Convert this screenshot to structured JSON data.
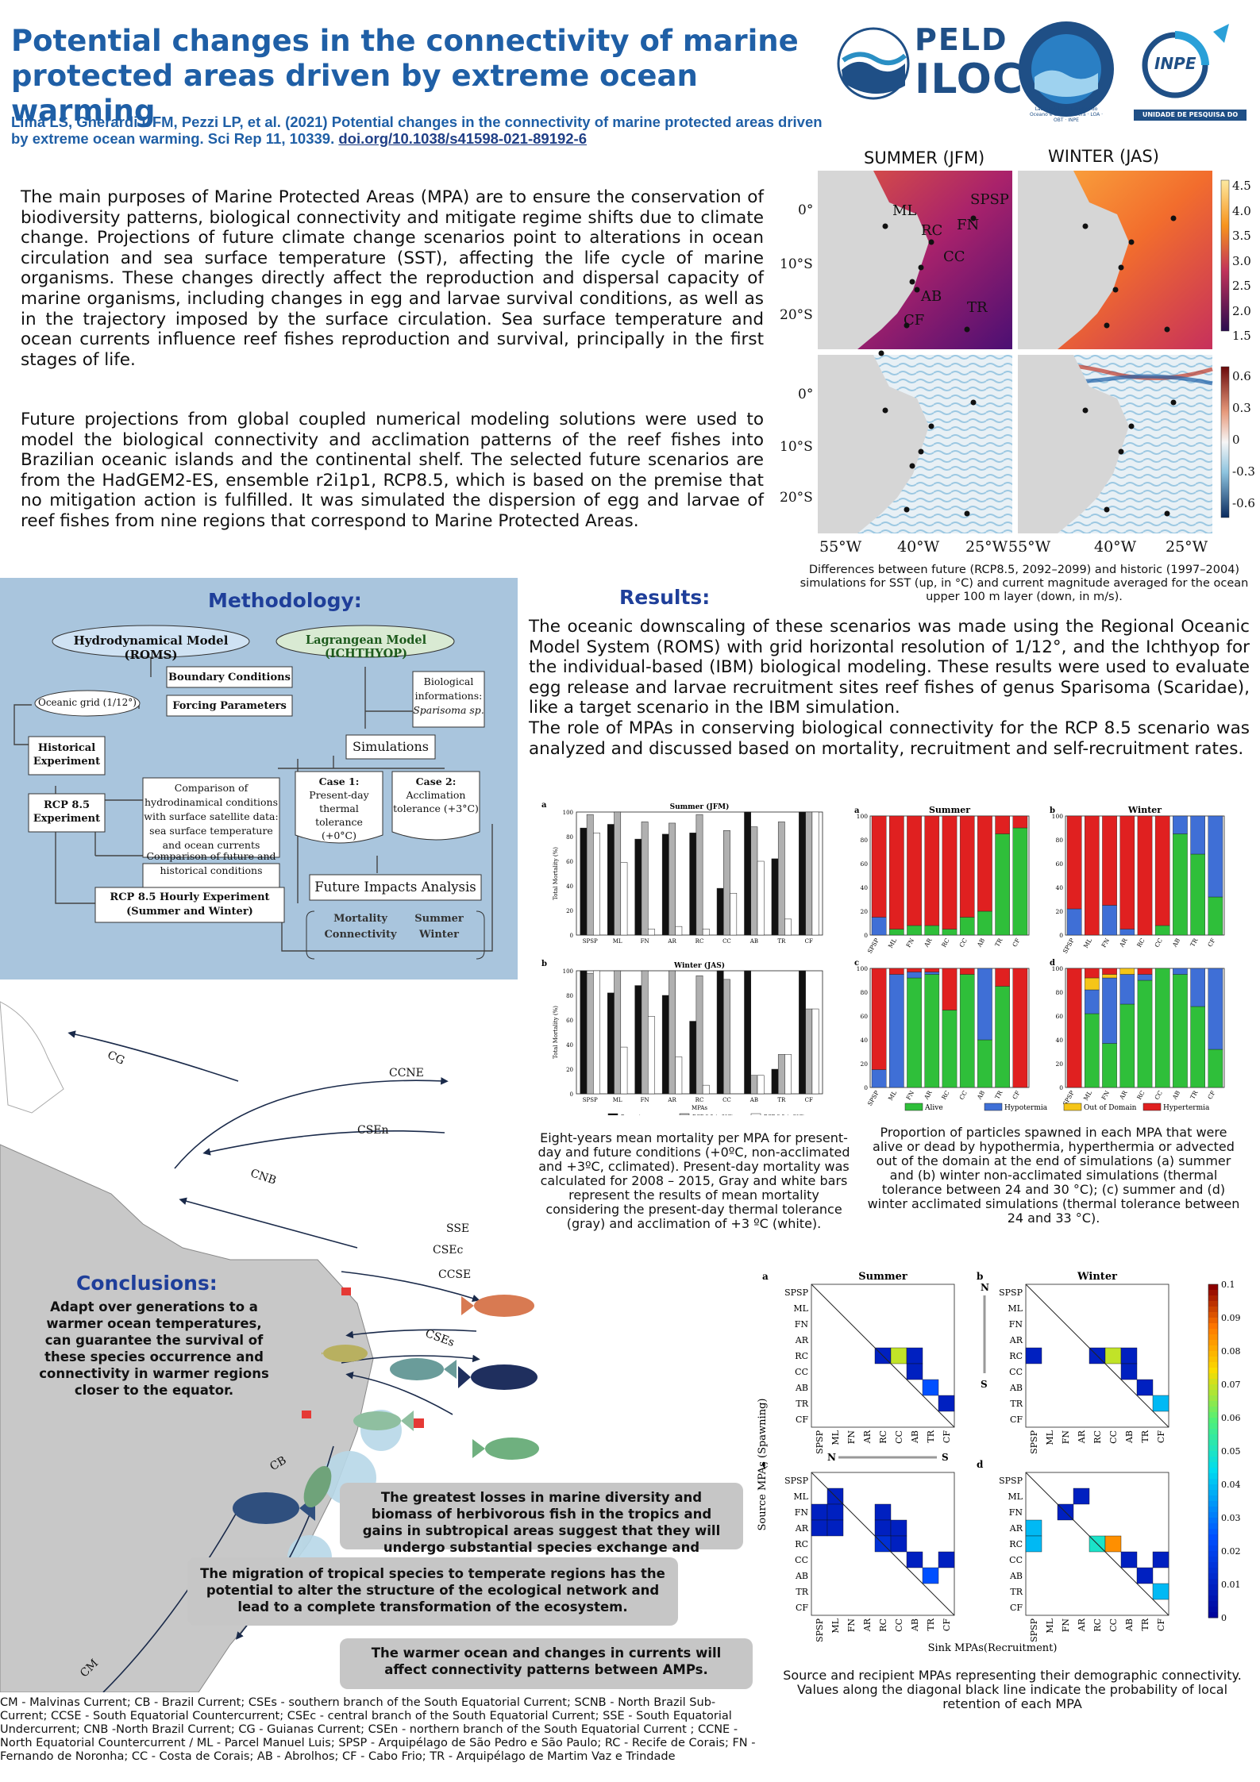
{
  "title": "Potential changes in the connectivity of marine protected areas driven by extreme ocean warming",
  "citation": {
    "text": "Lima LS, Gherardi DFM, Pezzi LP, et al. (2021) Potential changes in the connectivity of marine protected areas driven by extreme ocean warming. Sci Rep 11, 10339.",
    "doi": "doi.org/10.1038/s41598-021-89192-6"
  },
  "logos": {
    "peld_top": "PELD",
    "peld_bottom": "ILOC",
    "seal_text": "Laboratório de Estudos do Oceano e da Atmosfera · LOA · OBT · INPE",
    "inpe_name": "INPE",
    "inpe_caption": "UNIDADE DE PESQUISA DO MCTI"
  },
  "intro": {
    "p1": "The main purposes of Marine Protected Areas (MPA) are to ensure the conservation of biodiversity patterns, biological connectivity and mitigate regime shifts due to climate change. Projections of future climate change scenarios point to alterations in ocean circulation and sea surface temperature (SST), affecting the life cycle of marine organisms. These changes directly affect the reproduction and dispersal capacity of marine organisms, including changes in egg and larvae survival conditions, as well as in the trajectory imposed by the surface circulation. Sea surface temperature and ocean currents influence reef fishes reproduction and survival, principally in the first stages of life.",
    "p2": "Future projections from global coupled numerical modeling solutions were used to model the biological connectivity and acclimation patterns of the reef fishes into Brazilian oceanic islands and the continental shelf. The selected future scenarios are from the HadGEM2-ES, ensemble r2i1p1, RCP8.5, which is based on the premise that no mitigation action is fulfilled. It was simulated the dispersion of egg and larvae of reef fishes from nine regions that correspond to Marine Protected Areas."
  },
  "map_figure": {
    "col_summer": "SUMMER (JFM)",
    "col_winter": "WINTER (JAS)",
    "lat_labels": [
      "0°",
      "10°S",
      "20°S"
    ],
    "lon_labels": [
      "55°W",
      "40°W",
      "25°W",
      "55°W",
      "40°W",
      "25°W"
    ],
    "site_labels": [
      "ML",
      "SPSP",
      "RC",
      "FN",
      "CC",
      "AB",
      "TR",
      "CF"
    ],
    "sst_ticks": [
      "4.5",
      "4.0",
      "3.5",
      "3.0",
      "2.5",
      "2.0",
      "1.5"
    ],
    "cur_ticks": [
      "0.6",
      "0.3",
      "0",
      "-0.3",
      "-0.6"
    ],
    "caption": "Differences between future (RCP8.5, 2092–2099) and historic (1997–2004) simulations for SST (up, in °C) and current magnitude averaged for the ocean upper 100 m layer (down, in m/s)."
  },
  "methodology": {
    "heading": "Methodology:",
    "roms": "Hydrodynamical Model (ROMS)",
    "ichthyop": "Lagrangean Model (ICHTHYOP)",
    "grid": "Oceanic grid (1/12°)",
    "boundary": "Boundary Conditions",
    "forcing": "Forcing Parameters",
    "historical": [
      "Historical",
      "Experiment"
    ],
    "rcp": [
      "RCP 8.5",
      "Experiment"
    ],
    "comparison1": [
      "Comparison of",
      "hydrodinamical conditions",
      "with surface satellite data:",
      "sea surface temperature",
      "and ocean currents"
    ],
    "comparison2": [
      "Comparison of future and",
      "historical conditions"
    ],
    "hourly": [
      "RCP 8.5 Hourly Experiment",
      "(Summer and Winter)"
    ],
    "bio": [
      "Biological",
      "informations:",
      "Sparisoma sp."
    ],
    "simulations": "Simulations",
    "case1": [
      "Case 1:",
      "Present-day",
      "thermal tolerance",
      "(+0°C)"
    ],
    "case2": [
      "Case 2:",
      "Acclimation",
      "tolerance (+3°C)"
    ],
    "future": "Future Impacts Analysis",
    "mortality": [
      "Mortality",
      "Connectivity"
    ],
    "season": [
      "Summer",
      "Winter"
    ]
  },
  "results": {
    "heading": "Results:",
    "p1": "The oceanic downscaling of these scenarios was made using the Regional Oceanic Model System (ROMS) with grid horizontal resolution of 1/12°, and the Ichthyop for the individual-based (IBM) biological modeling. These results were used to evaluate egg release and larvae recruitment sites reef fishes of genus Sparisoma (Scaridae), like a target scenario in the IBM simulation.",
    "p2": "The role of MPAs in conserving biological connectivity for the RCP 8.5 scenario was analyzed and discussed based on mortality, recruitment and self-recruitment rates."
  },
  "chart_data": [
    {
      "type": "bar",
      "panel": "a",
      "title": "Summer (JFM)",
      "ylabel": "Total Mortality (%)",
      "ylim": [
        0,
        100
      ],
      "categories": [
        "SPSP",
        "ML",
        "FN",
        "AR",
        "RC",
        "CC",
        "AB",
        "TR",
        "CF"
      ],
      "series": [
        {
          "name": "Present",
          "values": [
            87,
            90,
            78,
            82,
            83,
            38,
            100,
            62,
            100
          ]
        },
        {
          "name": "RCP 8.5 (+0°C)",
          "values": [
            98,
            100,
            92,
            91,
            98,
            85,
            88,
            92,
            100
          ]
        },
        {
          "name": "RCP 8.5 (+3°C)",
          "values": [
            83,
            59,
            5,
            7,
            5,
            34,
            60,
            13,
            100
          ]
        }
      ]
    },
    {
      "type": "bar",
      "panel": "b",
      "title": "Winter (JAS)",
      "xlabel": "MPAs",
      "ylabel": "Total Mortality (%)",
      "ylim": [
        0,
        100
      ],
      "categories": [
        "SPSP",
        "ML",
        "FN",
        "AR",
        "RC",
        "CC",
        "AB",
        "TR",
        "CF"
      ],
      "series": [
        {
          "name": "Present",
          "values": [
            100,
            82,
            88,
            80,
            59,
            100,
            100,
            20,
            100
          ]
        },
        {
          "name": "RCP 8.5 (+0°C)",
          "values": [
            98,
            100,
            100,
            100,
            96,
            93,
            15,
            32,
            69
          ]
        },
        {
          "name": "RCP 8.5 (+3°C)",
          "values": [
            100,
            38,
            63,
            30,
            7,
            0,
            15,
            32,
            69
          ]
        }
      ],
      "legend": "bottom"
    },
    {
      "type": "bar",
      "stacked": true,
      "categories": [
        "SPSP",
        "ML",
        "FN",
        "AR",
        "RC",
        "CC",
        "AB",
        "TR",
        "CF"
      ],
      "ylim": [
        0,
        100
      ],
      "legend": [
        "Alive",
        "Hypotermia",
        "Out of Domain",
        "Hypertermia"
      ],
      "colors": {
        "Alive": "#2fbf3a",
        "Hypotermia": "#3f6fd6",
        "Out of Domain": "#f5c518",
        "Hypertermia": "#e02020"
      },
      "panels": [
        {
          "panel": "a",
          "title": "Summer",
          "alive": [
            0,
            5,
            8,
            8,
            5,
            15,
            20,
            85,
            90
          ],
          "hypo": [
            15,
            0,
            0,
            0,
            0,
            0,
            0,
            0,
            0
          ],
          "out": [
            0,
            0,
            0,
            0,
            0,
            0,
            0,
            0,
            0
          ]
        },
        {
          "panel": "b",
          "title": "Winter",
          "alive": [
            0,
            0,
            0,
            0,
            0,
            8,
            85,
            68,
            32
          ],
          "hypo": [
            22,
            0,
            25,
            5,
            0,
            0,
            15,
            32,
            68
          ],
          "out": [
            0,
            0,
            0,
            0,
            0,
            0,
            0,
            0,
            0
          ]
        },
        {
          "panel": "c",
          "title": "",
          "alive": [
            0,
            0,
            92,
            95,
            65,
            95,
            40,
            85,
            0
          ],
          "hypo": [
            15,
            95,
            5,
            2,
            0,
            0,
            60,
            0,
            0
          ],
          "out": [
            0,
            0,
            0,
            0,
            0,
            0,
            0,
            0,
            0
          ]
        },
        {
          "panel": "d",
          "title": "",
          "alive": [
            0,
            62,
            37,
            70,
            90,
            100,
            95,
            68,
            32
          ],
          "hypo": [
            0,
            20,
            55,
            25,
            5,
            0,
            5,
            32,
            68
          ],
          "out": [
            0,
            10,
            3,
            5,
            0,
            0,
            0,
            0,
            0
          ]
        }
      ]
    },
    {
      "type": "heatmap",
      "xlabel": "Sink MPAs(Recruitment)",
      "ylabel": "Source MPAs (Spawning)",
      "labels": [
        "SPSP",
        "ML",
        "FN",
        "AR",
        "RC",
        "CC",
        "AB",
        "TR",
        "CF"
      ],
      "colorbar": [
        0,
        0.01,
        0.02,
        0.03,
        0.04,
        0.05,
        0.06,
        0.07,
        0.08,
        0.09,
        0.1
      ],
      "panels": [
        {
          "panel": "a",
          "title": "Summer",
          "cells": [
            [
              4,
              4,
              0.01
            ],
            [
              4,
              5,
              0.07
            ],
            [
              4,
              6,
              0.01
            ],
            [
              5,
              6,
              0.01
            ],
            [
              6,
              7,
              0.025
            ],
            [
              7,
              8,
              0.01
            ]
          ]
        },
        {
          "panel": "b",
          "title": "Winter",
          "cells": [
            [
              4,
              0,
              0.01
            ],
            [
              4,
              4,
              0.01
            ],
            [
              4,
              5,
              0.07
            ],
            [
              4,
              6,
              0.01
            ],
            [
              5,
              6,
              0.01
            ],
            [
              6,
              7,
              0.01
            ],
            [
              7,
              8,
              0.04
            ]
          ]
        },
        {
          "panel": "c",
          "title": "",
          "cells": [
            [
              1,
              1,
              0.01
            ],
            [
              2,
              0,
              0.01
            ],
            [
              2,
              1,
              0.01
            ],
            [
              3,
              0,
              0.01
            ],
            [
              3,
              1,
              0.01
            ],
            [
              2,
              4,
              0.01
            ],
            [
              3,
              4,
              0.01
            ],
            [
              3,
              5,
              0.01
            ],
            [
              4,
              4,
              0.015
            ],
            [
              4,
              5,
              0.01
            ],
            [
              5,
              6,
              0.01
            ],
            [
              6,
              7,
              0.025
            ],
            [
              5,
              8,
              0.01
            ]
          ]
        },
        {
          "panel": "d",
          "title": "",
          "cells": [
            [
              2,
              2,
              0.01
            ],
            [
              1,
              3,
              0.01
            ],
            [
              3,
              0,
              0.04
            ],
            [
              4,
              0,
              0.04
            ],
            [
              4,
              4,
              0.05
            ],
            [
              4,
              5,
              0.085
            ],
            [
              5,
              6,
              0.01
            ],
            [
              6,
              7,
              0.01
            ],
            [
              5,
              8,
              0.01
            ],
            [
              7,
              8,
              0.04
            ]
          ]
        }
      ]
    }
  ],
  "charts_text": {
    "mort_title_a": "Summer (JFM)",
    "mort_title_b": "Winter (JAS)",
    "mort_ylabel": "Total Mortality (%)",
    "mort_xlabel": "MPAs",
    "mort_legend": [
      "Present",
      "RCP 8.5 (+0°C)",
      "RCP 8.5 (+3°C)"
    ],
    "stack_titles": [
      "Summer",
      "Winter"
    ],
    "stack_legend": [
      "Alive",
      "Hypotermia",
      "Out of Domain",
      "Hypertermia"
    ],
    "heat_titles": [
      "Summer",
      "Winter"
    ],
    "heat_N": "N",
    "heat_S": "S",
    "heat_xlabel": "Sink MPAs(Recruitment)",
    "heat_ylabel": "Source MPAs (Spawning)"
  },
  "captions": {
    "mortality": "Eight-years mean mortality per MPA for present-day and future conditions (+0ºC, non-acclimated and +3ºC, cclimated). Present-day mortality was calculated for 2008 – 2015, Gray and white bars represent the results of mean mortality considering the present-day thermal tolerance (gray) and acclimation of +3 ºC (white).",
    "proportion": "Proportion of particles spawned in each MPA that were alive or dead by hypothermia, hyperthermia or advected out of the domain at the end of simulations (a) summer and (b) winter non-acclimated simulations (thermal tolerance between 24 and 30 °C); (c) summer and (d) winter acclimated simulations (thermal tolerance between 24 and 33 °C).",
    "connectivity": "Source and recipient MPAs representing their demographic connectivity. Values along the diagonal black line indicate the probability of local retention of each MPA"
  },
  "currents_map": {
    "labels": [
      "CG",
      "CCNE",
      "CSEn",
      "CNB",
      "SSE",
      "CSEc",
      "CCSE",
      "CSEs",
      "CB",
      "CM"
    ]
  },
  "conclusions": {
    "heading": "Conclusions:",
    "c1": "Adapt over generations to a warmer ocean temperatures, can guarantee the survival of these species occurrence and connectivity in warmer regions closer to the equator.",
    "c2": "The greatest losses in marine diversity and biomass of herbivorous fish in the tropics and gains in subtropical areas suggest that they will undergo substantial species exchange and homogenization.",
    "c3": "The migration of tropical species to temperate regions has the potential to alter the structure of the ecological network and lead to a complete transformation of the ecosystem.",
    "c4": "The warmer ocean and changes in currents will affect connectivity patterns between AMPs."
  },
  "abbreviations": "CM - Malvinas Current; CB - Brazil Current; CSEs - southern branch of the South Equatorial Current; SCNB - North Brazil Sub-Current; CCSE - South Equatorial Countercurrent; CSEc - central branch of the South Equatorial Current; SSE - South Equatorial Undercurrent; CNB -North Brazil Current; CG - Guianas Current; CSEn - northern branch of the South Equatorial Current ; CCNE - North Equatorial Countercurrent / ML - Parcel Manuel Luis; SPSP - Arquipélago de São Pedro e São Paulo; RC - Recife de Corais; FN - Fernando de Noronha; CC - Costa de Corais; AB - Abrolhos; CF - Cabo Frio; TR - Arquipélago de Martim Vaz e Trindade"
}
